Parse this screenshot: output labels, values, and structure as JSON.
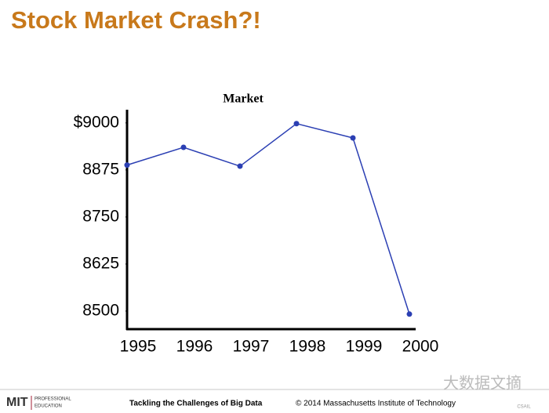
{
  "slide_title": "Stock Market Crash?!",
  "chart_data": {
    "type": "line",
    "title": "Market",
    "categories": [
      "1995",
      "1996",
      "1997",
      "1998",
      "1999",
      "2000"
    ],
    "series": [
      {
        "name": "Market",
        "color": "#2b3fb3",
        "values": [
          8888,
          8935,
          8885,
          8998,
          8960,
          8492
        ]
      }
    ],
    "ylim": [
      8452,
      9035
    ],
    "yticks": [
      8500,
      8625,
      8750,
      8875,
      {
        "value": 9000,
        "label": "$9000"
      }
    ],
    "grid": false
  },
  "footer": {
    "logo": "MIT",
    "logo_sub": [
      "PROFESSIONAL",
      "EDUCATION"
    ],
    "course": "Tackling the Challenges of Big Data",
    "copyright": "© 2014 Massachusetts Institute of Technology",
    "watermark": "大数据文摘",
    "lab": "CSAIL"
  }
}
